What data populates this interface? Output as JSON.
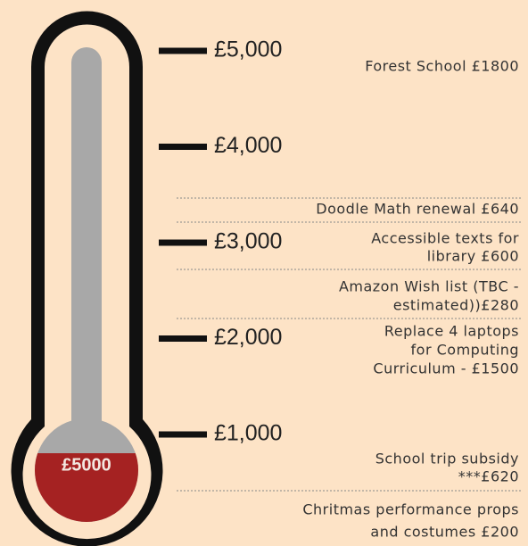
{
  "thermometer": {
    "bulb_label": "£5000",
    "scale": [
      {
        "value": 5000,
        "label": "£5,000"
      },
      {
        "value": 4000,
        "label": "£4,000"
      },
      {
        "value": 3000,
        "label": "£3,000"
      },
      {
        "value": 2000,
        "label": "£2,000"
      },
      {
        "value": 1000,
        "label": "£1,000"
      }
    ]
  },
  "items": [
    {
      "lines": [
        "Forest School  £1800"
      ]
    },
    {
      "lines": [
        "Doodle Math renewal £640"
      ]
    },
    {
      "lines": [
        "Accessible  texts for",
        "library £600"
      ]
    },
    {
      "lines": [
        "Amazon Wish list (TBC -",
        "estimated))£280"
      ]
    },
    {
      "lines": [
        "Replace 4 laptops",
        "for Computing",
        "Curriculum - £1500"
      ]
    },
    {
      "lines": [
        "School trip subsidy",
        "***£620"
      ]
    },
    {
      "lines": [
        "Chritmas performance props",
        "and costumes £200"
      ]
    }
  ]
}
